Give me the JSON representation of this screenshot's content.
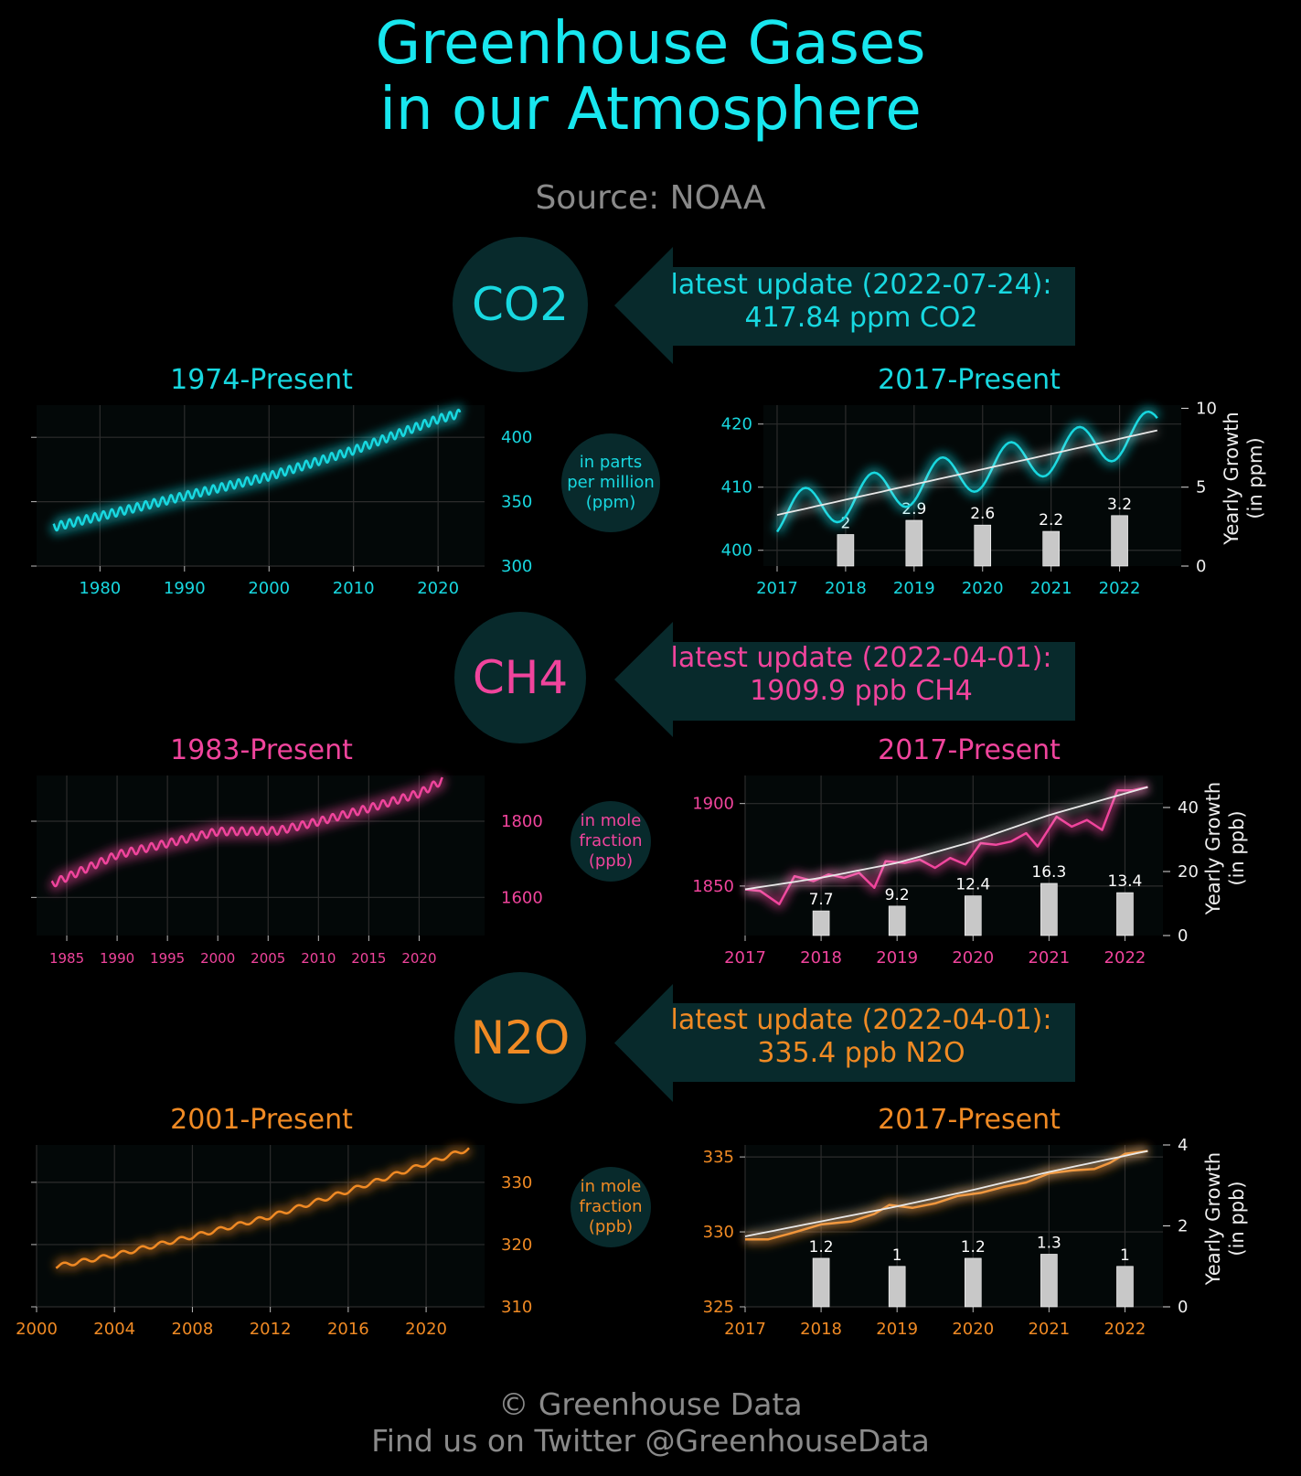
{
  "header": {
    "title_line1": "Greenhouse Gases",
    "title_line2": "in our Atmosphere",
    "source": "Source: NOAA"
  },
  "footer": {
    "line1": "© Greenhouse Data",
    "line2": "Find us on Twitter @GreenhouseData"
  },
  "colors": {
    "co2": "#18d8e0",
    "ch4": "#f0449c",
    "n2o": "#f08a24",
    "panel": "#082a2c",
    "bar": "#c8c8c8"
  },
  "gases": [
    {
      "name": "CO2",
      "update_line1": "latest update (2022-07-24):",
      "update_line2": "417.84 ppm CO2",
      "unit_line1": "in parts",
      "unit_line2": "per million",
      "unit_line3": "(ppm)",
      "long_title": "1974-Present",
      "short_title": "2017-Present",
      "right_axis_label_1": "Yearly Growth",
      "right_axis_label_2": "(in ppm)"
    },
    {
      "name": "CH4",
      "update_line1": "latest update (2022-04-01):",
      "update_line2": "1909.9 ppb CH4",
      "unit_line1": "in mole",
      "unit_line2": "fraction",
      "unit_line3": "(ppb)",
      "long_title": "1983-Present",
      "short_title": "2017-Present",
      "right_axis_label_1": "Yearly Growth",
      "right_axis_label_2": "(in ppb)"
    },
    {
      "name": "N2O",
      "update_line1": "latest update (2022-04-01):",
      "update_line2": "335.4 ppb N2O",
      "unit_line1": "in mole",
      "unit_line2": "fraction",
      "unit_line3": "(ppb)",
      "long_title": "2001-Present",
      "short_title": "2017-Present",
      "right_axis_label_1": "Yearly Growth",
      "right_axis_label_2": "(in ppb)"
    }
  ],
  "chart_data": [
    {
      "type": "line",
      "gas": "CO2",
      "title": "1974-Present",
      "xlim": [
        1972.5,
        2025.5
      ],
      "ylim": [
        300,
        425
      ],
      "xticks": [
        1980,
        1990,
        2000,
        2010,
        2020
      ],
      "yticks": [
        300,
        350,
        400
      ],
      "trend_points": [
        [
          1974.5,
          330.3
        ],
        [
          1980,
          338.7
        ],
        [
          1990,
          354.4
        ],
        [
          2000,
          369.7
        ],
        [
          2010,
          389.9
        ],
        [
          2020,
          414.2
        ],
        [
          2022.6,
          418.5
        ]
      ],
      "seasonal_amplitude": 3.2
    },
    {
      "type": "line+bar",
      "gas": "CO2",
      "title": "2017-Present",
      "xlim": [
        2016.8,
        2022.9
      ],
      "ylim": [
        397.5,
        423
      ],
      "xticks": [
        2017,
        2018,
        2019,
        2020,
        2021,
        2022
      ],
      "yticks": [
        400,
        410,
        420
      ],
      "y2lim": [
        0,
        10.2
      ],
      "y2ticks": [
        0,
        5,
        10
      ],
      "trend_points": [
        [
          2017,
          405.6
        ],
        [
          2022.55,
          419.0
        ]
      ],
      "seasonal_amplitude": 3.3,
      "growth": {
        "x": [
          2018,
          2019,
          2020,
          2021,
          2022
        ],
        "values": [
          2,
          2.9,
          2.6,
          2.2,
          3.2
        ]
      }
    },
    {
      "type": "line",
      "gas": "CH4",
      "title": "1983-Present",
      "xlim": [
        1982,
        2026.5
      ],
      "ylim": [
        1500,
        1920
      ],
      "xticks": [
        1985,
        1990,
        1995,
        2000,
        2005,
        2010,
        2015,
        2020
      ],
      "yticks": [
        1600,
        1800
      ],
      "trend_points": [
        [
          1983.5,
          1635
        ],
        [
          1990,
          1712
        ],
        [
          1995,
          1742
        ],
        [
          2000,
          1773
        ],
        [
          2006,
          1775
        ],
        [
          2010,
          1799
        ],
        [
          2015,
          1834
        ],
        [
          2020,
          1873
        ],
        [
          2022.3,
          1907
        ]
      ],
      "seasonal_amplitude": 10
    },
    {
      "type": "line+bar",
      "gas": "CH4",
      "title": "2017-Present",
      "xlim": [
        2017,
        2022.5
      ],
      "ylim": [
        1820,
        1917
      ],
      "xticks": [
        2017,
        2018,
        2019,
        2020,
        2021,
        2022
      ],
      "yticks": [
        1850,
        1900
      ],
      "y2lim": [
        0,
        50
      ],
      "y2ticks": [
        0,
        20,
        40
      ],
      "trend_points": [
        [
          2017,
          1848
        ],
        [
          2018,
          1855
        ],
        [
          2019,
          1864
        ],
        [
          2020,
          1877
        ],
        [
          2021,
          1893
        ],
        [
          2022.3,
          1910
        ]
      ],
      "series_points": [
        [
          2017.0,
          1848
        ],
        [
          2017.2,
          1847
        ],
        [
          2017.45,
          1839
        ],
        [
          2017.65,
          1856
        ],
        [
          2017.9,
          1853
        ],
        [
          2018.1,
          1857
        ],
        [
          2018.3,
          1855
        ],
        [
          2018.5,
          1858
        ],
        [
          2018.7,
          1849
        ],
        [
          2018.85,
          1865
        ],
        [
          2019.1,
          1864
        ],
        [
          2019.3,
          1866
        ],
        [
          2019.5,
          1861
        ],
        [
          2019.7,
          1867
        ],
        [
          2019.9,
          1863
        ],
        [
          2020.1,
          1876
        ],
        [
          2020.3,
          1875
        ],
        [
          2020.5,
          1877
        ],
        [
          2020.7,
          1882
        ],
        [
          2020.85,
          1874
        ],
        [
          2021.1,
          1892
        ],
        [
          2021.3,
          1886
        ],
        [
          2021.5,
          1890
        ],
        [
          2021.7,
          1884
        ],
        [
          2021.9,
          1908
        ],
        [
          2022.1,
          1908
        ],
        [
          2022.3,
          1910
        ]
      ],
      "growth": {
        "x": [
          2018,
          2019,
          2020,
          2021,
          2022
        ],
        "values": [
          7.7,
          9.2,
          12.4,
          16.3,
          13.4
        ]
      }
    },
    {
      "type": "line",
      "gas": "N2O",
      "title": "2001-Present",
      "xlim": [
        2000,
        2023
      ],
      "ylim": [
        310,
        336
      ],
      "xticks": [
        2000,
        2004,
        2008,
        2012,
        2016,
        2020
      ],
      "yticks": [
        310,
        320,
        330
      ],
      "trend_points": [
        [
          2001,
          316.5
        ],
        [
          2004,
          318.3
        ],
        [
          2008,
          321.3
        ],
        [
          2012,
          324.5
        ],
        [
          2016,
          328.6
        ],
        [
          2020,
          333
        ],
        [
          2022.2,
          335.4
        ]
      ],
      "seasonal_amplitude": 0.35
    },
    {
      "type": "line+bar",
      "gas": "N2O",
      "title": "2017-Present",
      "xlim": [
        2017,
        2022.5
      ],
      "ylim": [
        325,
        335.8
      ],
      "xticks": [
        2017,
        2018,
        2019,
        2020,
        2021,
        2022
      ],
      "yticks": [
        325,
        330,
        335
      ],
      "y2lim": [
        0,
        4
      ],
      "y2ticks": [
        0,
        2,
        4
      ],
      "trend_points": [
        [
          2017,
          329.7
        ],
        [
          2018,
          330.7
        ],
        [
          2019,
          331.7
        ],
        [
          2020,
          332.8
        ],
        [
          2021,
          334
        ],
        [
          2022.3,
          335.4
        ]
      ],
      "series_points": [
        [
          2017.0,
          329.5
        ],
        [
          2017.3,
          329.5
        ],
        [
          2017.6,
          329.9
        ],
        [
          2018.0,
          330.5
        ],
        [
          2018.4,
          330.7
        ],
        [
          2018.7,
          331.2
        ],
        [
          2018.9,
          331.8
        ],
        [
          2019.2,
          331.6
        ],
        [
          2019.5,
          331.9
        ],
        [
          2019.8,
          332.4
        ],
        [
          2020.1,
          332.6
        ],
        [
          2020.4,
          333.0
        ],
        [
          2020.7,
          333.3
        ],
        [
          2021.0,
          333.9
        ],
        [
          2021.3,
          334.1
        ],
        [
          2021.6,
          334.2
        ],
        [
          2021.8,
          334.6
        ],
        [
          2022.0,
          335.2
        ],
        [
          2022.3,
          335.4
        ]
      ],
      "growth": {
        "x": [
          2018,
          2019,
          2020,
          2021,
          2022
        ],
        "values": [
          1.2,
          1,
          1.2,
          1.3,
          1
        ]
      }
    }
  ]
}
